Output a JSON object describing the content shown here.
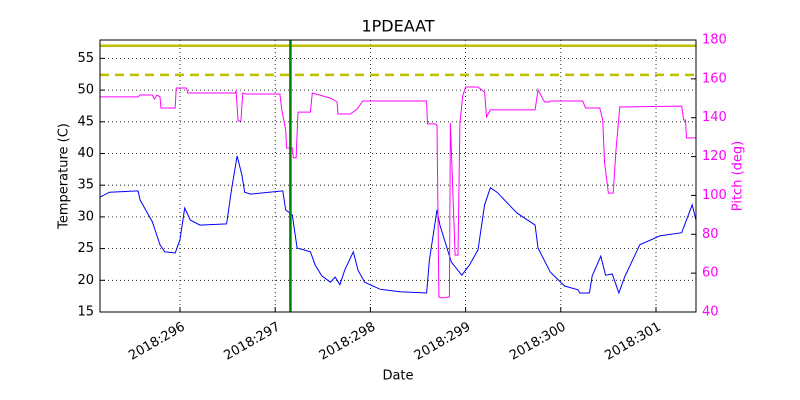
{
  "chart_data": {
    "type": "line",
    "title": "1PDEAAT",
    "xlabel": "Date",
    "ylabel": "Temperature (C)",
    "y2label": "Pitch (deg)",
    "y2color": "#ff00ff",
    "grid": true,
    "xlim": [
      295.16,
      301.42
    ],
    "xticks": [
      {
        "value": 296,
        "label": "2018:296"
      },
      {
        "value": 297,
        "label": "2018:297"
      },
      {
        "value": 298,
        "label": "2018:298"
      },
      {
        "value": 299,
        "label": "2018:299"
      },
      {
        "value": 300,
        "label": "2018:300"
      },
      {
        "value": 301,
        "label": "2018:301"
      }
    ],
    "ylim": [
      15,
      57.9
    ],
    "yticks": [
      15,
      20,
      25,
      30,
      35,
      40,
      45,
      50,
      55
    ],
    "y2lim": [
      40,
      180
    ],
    "y2ticks": [
      40,
      60,
      80,
      100,
      120,
      140,
      160,
      180
    ],
    "hlines": [
      {
        "value": 57,
        "color": "#bfbf00",
        "style": "solid"
      },
      {
        "value": 52.4,
        "color": "#bfbf00",
        "style": "dashed"
      }
    ],
    "vlines": [
      {
        "value": 297.16,
        "color": "#008000"
      }
    ],
    "series": [
      {
        "color": "#0000ff",
        "x": [
          295.16,
          295.26,
          295.56,
          295.58,
          295.71,
          295.79,
          295.84,
          295.95,
          296,
          296.05,
          296.11,
          296.21,
          296.49,
          296.54,
          296.6,
          296.65,
          296.68,
          296.74,
          297.08,
          297.11,
          297.18,
          297.23,
          297.37,
          297.42,
          297.49,
          297.58,
          297.63,
          297.68,
          297.73,
          297.82,
          297.87,
          297.94,
          298.1,
          298.31,
          298.59,
          298.62,
          298.7,
          298.73,
          298.85,
          298.96,
          299.04,
          299.13,
          299.2,
          299.26,
          299.33,
          299.54,
          299.73,
          299.76,
          299.89,
          300.04,
          300.18,
          300.2,
          300.3,
          300.33,
          300.42,
          300.47,
          300.54,
          300.58,
          300.61,
          300.67,
          300.83,
          301.04,
          301.27,
          301.38,
          301.42
        ],
        "values": [
          33.1,
          33.9,
          34.1,
          32.7,
          29.2,
          25.6,
          24.5,
          24.3,
          26.4,
          31.4,
          29.5,
          28.7,
          28.9,
          34.2,
          39.6,
          36.6,
          33.9,
          33.6,
          34.1,
          31.1,
          30.3,
          25.1,
          24.5,
          22.4,
          20.7,
          19.7,
          20.5,
          19.3,
          21.6,
          24.5,
          21.6,
          19.7,
          18.6,
          18.2,
          18.0,
          23.2,
          31.1,
          28.7,
          22.9,
          20.8,
          22.4,
          24.8,
          31.9,
          34.6,
          33.9,
          30.6,
          28.7,
          25.1,
          21.3,
          19.1,
          18.5,
          18.0,
          18.0,
          20.7,
          23.8,
          20.8,
          21.0,
          19.3,
          18.0,
          20.5,
          25.6,
          27.0,
          27.5,
          31.9,
          29.5
        ]
      },
      {
        "color": "#ff00ff",
        "axis": "y2",
        "x": [
          295.16,
          295.56,
          295.58,
          295.71,
          295.73,
          295.76,
          295.79,
          295.8,
          295.95,
          295.96,
          296.07,
          296.08,
          296.58,
          296.59,
          296.61,
          296.64,
          296.66,
          296.69,
          297.05,
          297.07,
          297.11,
          297.12,
          297.18,
          297.19,
          297.22,
          297.24,
          297.37,
          297.39,
          297.58,
          297.65,
          297.66,
          297.79,
          297.86,
          297.92,
          298.59,
          298.6,
          298.68,
          298.7,
          298.72,
          298.75,
          298.83,
          298.84,
          298.89,
          298.92,
          298.94,
          298.97,
          299.0,
          299.13,
          299.2,
          299.22,
          299.26,
          299.73,
          299.76,
          299.83,
          299.88,
          299.89,
          300.23,
          300.26,
          300.41,
          300.44,
          300.46,
          300.5,
          300.55,
          300.58,
          300.62,
          301.27,
          301.29,
          301.31,
          301.32,
          301.42
        ],
        "values": [
          150.7,
          150.7,
          151.7,
          151.7,
          149.6,
          151.7,
          150.7,
          145.0,
          145.0,
          155.3,
          155.3,
          152.7,
          152.7,
          153.7,
          138.3,
          138.3,
          152.7,
          152.2,
          152.2,
          144.0,
          133.7,
          124.4,
          124.4,
          119.3,
          119.3,
          142.9,
          142.9,
          152.7,
          150.1,
          148.1,
          141.9,
          141.9,
          144.5,
          148.6,
          148.6,
          136.8,
          136.8,
          136.2,
          47.7,
          47.2,
          47.7,
          137.3,
          69.3,
          69.3,
          137.3,
          151.2,
          155.8,
          155.8,
          153.2,
          140.4,
          144.0,
          144.0,
          154.3,
          148.1,
          148.1,
          148.6,
          148.6,
          145.0,
          145.0,
          138.8,
          116.7,
          101.2,
          101.2,
          123.4,
          145.5,
          146.0,
          138.8,
          138.8,
          129.6,
          129.6
        ]
      }
    ]
  }
}
